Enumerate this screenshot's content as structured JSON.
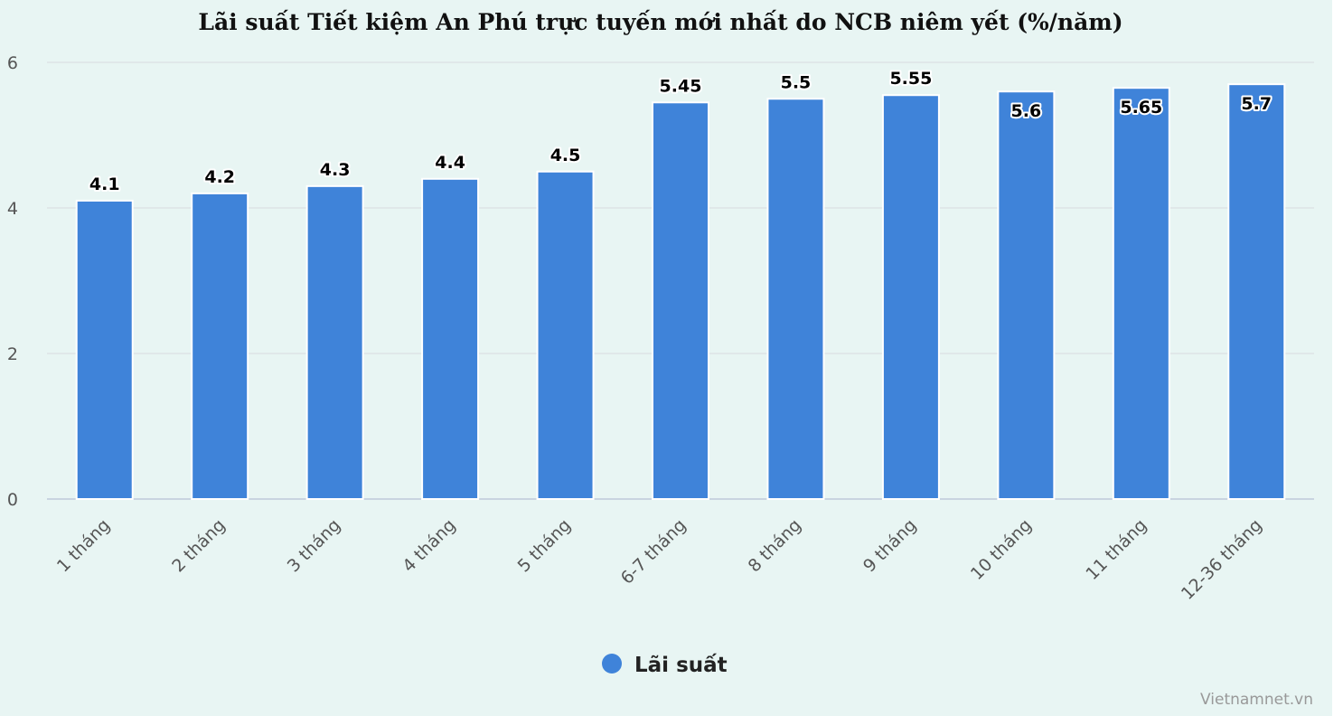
{
  "chart_data": {
    "type": "bar",
    "title": "Lãi suất Tiết kiệm An Phú trực tuyến mới nhất do NCB niêm yết (%/năm)",
    "categories": [
      "1 tháng",
      "2 tháng",
      "3 tháng",
      "4 tháng",
      "5 tháng",
      "6-7 tháng",
      "8 tháng",
      "9 tháng",
      "10 tháng",
      "11 tháng",
      "12-36 tháng"
    ],
    "series": [
      {
        "name": "Lãi suất",
        "color": "#3f83d9",
        "values": [
          4.1,
          4.2,
          4.3,
          4.4,
          4.5,
          5.45,
          5.5,
          5.55,
          5.6,
          5.65,
          5.7
        ],
        "data_labels": [
          "4.1",
          "4.2",
          "4.3",
          "4.4",
          "4.5",
          "5.45",
          "5.5",
          "5.55",
          "5.6",
          "5.65",
          "5.7"
        ]
      }
    ],
    "ylim": [
      0,
      6
    ],
    "yticks": [
      0,
      2,
      4,
      6
    ],
    "xlabel": "",
    "ylabel": "",
    "grid": true,
    "legend": "bottom-center"
  },
  "credit": "Vietnamnet.vn"
}
